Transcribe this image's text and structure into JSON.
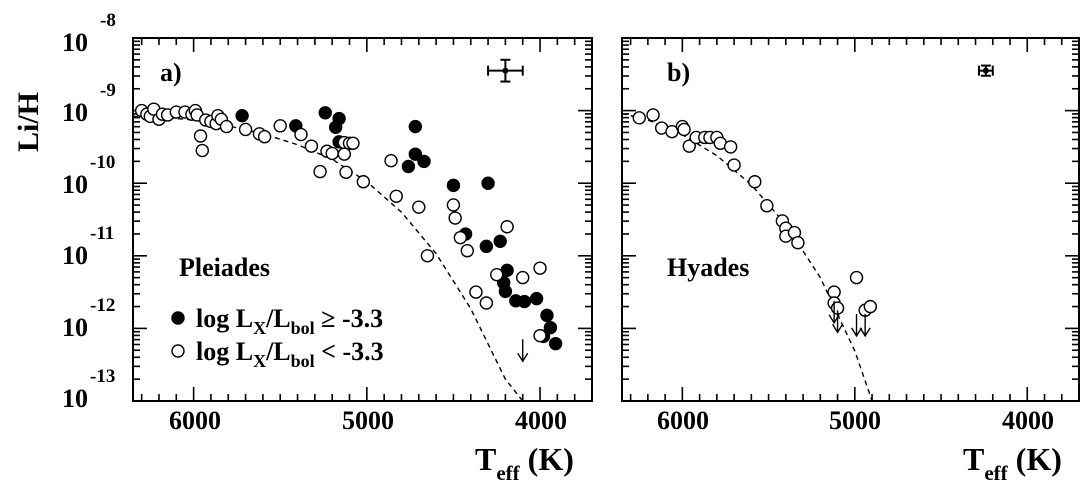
{
  "chart_data": [
    {
      "type": "scatter",
      "panel_label": "a)",
      "cluster_label": "Pleiades",
      "xlabel": "T",
      "xlabel_sub": "eff",
      "xlabel_unit": " (K)",
      "ylabel": "Li/H",
      "x_scale": "linear-reversed",
      "xlim": [
        6350,
        3700
      ],
      "x_ticks": [
        "6000",
        "5000",
        "4000"
      ],
      "y_scale": "log",
      "ylim": [
        -13,
        -8
      ],
      "y_ticks": [
        "-8",
        "-9",
        "-10",
        "-11",
        "-12",
        "-13"
      ],
      "y_tick_base": "10",
      "legend": [
        {
          "marker": "filled-circle",
          "text": "log L",
          "sub1": "X",
          "mid": "/L",
          "sub2": "bol",
          "tail": " ≥ -3.3"
        },
        {
          "marker": "open-circle",
          "text": "log L",
          "sub1": "X",
          "mid": "/L",
          "sub2": "bol",
          "tail": " < -3.3"
        }
      ],
      "error_bar": {
        "teff": 4200,
        "teff_err": 100,
        "log_li": -8.45,
        "log_li_err": 0.15
      },
      "series": [
        {
          "marker": "filled",
          "x": [
            5720,
            5410,
            5240,
            5180,
            5160,
            5160,
            4720,
            4760,
            4720,
            4670,
            4500,
            4300,
            4430,
            4310,
            4230,
            4190,
            4210,
            4200,
            4090,
            4140,
            4020,
            3960,
            3980,
            3940,
            3910
          ],
          "y": [
            -9.07,
            -9.21,
            -9.03,
            -9.23,
            -9.11,
            -9.43,
            -9.22,
            -9.77,
            -9.6,
            -9.7,
            -10.03,
            -10.0,
            -10.7,
            -10.87,
            -10.8,
            -11.2,
            -11.37,
            -11.49,
            -11.63,
            -11.62,
            -11.59,
            -11.82,
            -12.11,
            -11.99,
            -12.21
          ]
        },
        {
          "marker": "open",
          "x": [
            6300,
            6270,
            6250,
            6230,
            6200,
            6180,
            6150,
            6100,
            6050,
            6010,
            5990,
            5980,
            5960,
            5950,
            5930,
            5900,
            5870,
            5860,
            5840,
            5810,
            5700,
            5620,
            5590,
            5500,
            5380,
            5320,
            5270,
            5230,
            5200,
            5130,
            5130,
            5120,
            5100,
            5080,
            5020,
            4860,
            4830,
            4700,
            4650,
            4500,
            4490,
            4460,
            4420,
            4370,
            4310,
            4250,
            4190,
            4100,
            4000,
            4000
          ],
          "y": [
            -9.0,
            -9.05,
            -9.08,
            -8.98,
            -9.12,
            -9.05,
            -9.06,
            -9.02,
            -9.02,
            -9.05,
            -9.0,
            -9.06,
            -9.35,
            -9.55,
            -9.13,
            -9.15,
            -9.18,
            -9.07,
            -9.12,
            -9.22,
            -9.26,
            -9.32,
            -9.36,
            -9.21,
            -9.33,
            -9.49,
            -9.84,
            -9.56,
            -9.59,
            -9.44,
            -9.6,
            -9.85,
            -9.45,
            -9.45,
            -9.98,
            -9.69,
            -10.18,
            -10.33,
            -11.0,
            -10.3,
            -10.48,
            -10.75,
            -10.93,
            -11.5,
            -11.65,
            -11.26,
            -10.6,
            -11.3,
            -11.17,
            -12.1
          ]
        },
        {
          "marker": "upper-limit",
          "x": [
            4100
          ],
          "y": [
            -12.15
          ]
        }
      ],
      "model_curve": {
        "style": "dashed",
        "x": [
          6350,
          6200,
          6000,
          5800,
          5600,
          5400,
          5200,
          5000,
          4800,
          4600,
          4400,
          4200,
          4100
        ],
        "y": [
          -9.08,
          -9.09,
          -9.13,
          -9.21,
          -9.32,
          -9.47,
          -9.67,
          -9.98,
          -10.4,
          -10.97,
          -11.73,
          -12.7,
          -13.0
        ]
      }
    },
    {
      "type": "scatter",
      "panel_label": "b)",
      "cluster_label": "Hyades",
      "xlabel": "T",
      "xlabel_sub": "eff",
      "xlabel_unit": " (K)",
      "x_scale": "linear-reversed",
      "xlim": [
        6350,
        3700
      ],
      "x_ticks": [
        "6000",
        "5000",
        "4000"
      ],
      "y_scale": "log",
      "ylim": [
        -13,
        -8
      ],
      "error_bar": {
        "teff": 4240,
        "teff_err": 40,
        "log_li": -8.45,
        "log_li_err": 0.07
      },
      "series": [
        {
          "marker": "open",
          "x": [
            6250,
            6170,
            6120,
            6060,
            6000,
            5990,
            5960,
            5920,
            5870,
            5840,
            5800,
            5780,
            5720,
            5700,
            5580,
            5510,
            5420,
            5400,
            5400,
            5350,
            5330,
            5120,
            5120,
            5100,
            4990,
            4940,
            4910
          ],
          "y": [
            -9.1,
            -9.06,
            -9.24,
            -9.29,
            -9.22,
            -9.26,
            -9.49,
            -9.37,
            -9.37,
            -9.37,
            -9.37,
            -9.45,
            -9.5,
            -9.75,
            -9.98,
            -10.31,
            -10.52,
            -10.62,
            -10.73,
            -10.68,
            -10.82,
            -11.5,
            -11.65,
            -11.72,
            -11.3,
            -11.75,
            -11.7
          ]
        },
        {
          "marker": "upper-limit",
          "x": [
            5120,
            5100,
            4990,
            4940
          ],
          "y": [
            -11.62,
            -11.75,
            -11.8,
            -11.8
          ]
        }
      ],
      "model_curve": {
        "style": "dashed",
        "x": [
          6350,
          6200,
          6000,
          5800,
          5600,
          5400,
          5200,
          5000,
          4900
        ],
        "y": [
          -9.04,
          -9.13,
          -9.33,
          -9.62,
          -10.02,
          -10.57,
          -11.3,
          -12.31,
          -13.0
        ]
      }
    }
  ]
}
